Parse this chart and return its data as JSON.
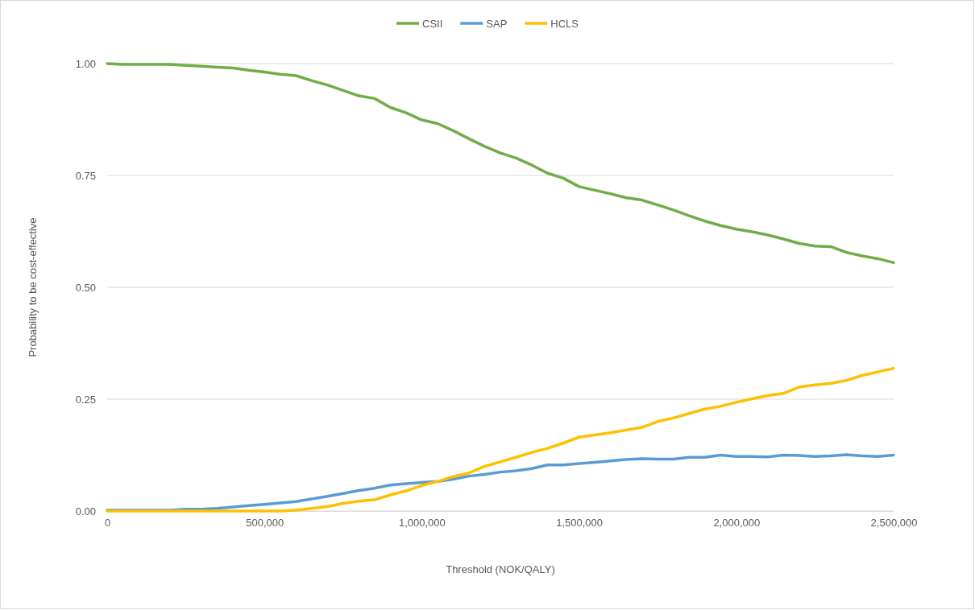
{
  "chart_data": {
    "type": "line",
    "xlabel": "Threshold (NOK/QALY)",
    "ylabel": "Probability to be cost-effective",
    "x": [
      0,
      50000,
      100000,
      150000,
      200000,
      250000,
      300000,
      350000,
      400000,
      450000,
      500000,
      550000,
      600000,
      650000,
      700000,
      750000,
      800000,
      850000,
      900000,
      950000,
      1000000,
      1050000,
      1100000,
      1150000,
      1200000,
      1250000,
      1300000,
      1350000,
      1400000,
      1450000,
      1500000,
      1550000,
      1600000,
      1650000,
      1700000,
      1750000,
      1800000,
      1850000,
      1900000,
      1950000,
      2000000,
      2050000,
      2100000,
      2150000,
      2200000,
      2250000,
      2300000,
      2350000,
      2400000,
      2450000,
      2500000
    ],
    "series": [
      {
        "name": "CSII",
        "color": "#70ad47",
        "values": [
          1.0,
          0.998,
          0.998,
          0.998,
          0.998,
          0.996,
          0.994,
          0.992,
          0.99,
          0.985,
          0.981,
          0.976,
          0.973,
          0.962,
          0.952,
          0.94,
          0.928,
          0.922,
          0.902,
          0.89,
          0.874,
          0.866,
          0.85,
          0.832,
          0.815,
          0.8,
          0.789,
          0.773,
          0.755,
          0.744,
          0.725,
          0.717,
          0.709,
          0.7,
          0.695,
          0.684,
          0.673,
          0.66,
          0.648,
          0.638,
          0.63,
          0.624,
          0.617,
          0.608,
          0.598,
          0.592,
          0.591,
          0.578,
          0.57,
          0.564,
          0.555
        ]
      },
      {
        "name": "SAP",
        "color": "#5b9bd5",
        "values": [
          0.002,
          0.002,
          0.002,
          0.002,
          0.002,
          0.004,
          0.004,
          0.006,
          0.009,
          0.012,
          0.015,
          0.018,
          0.021,
          0.027,
          0.033,
          0.039,
          0.046,
          0.051,
          0.058,
          0.061,
          0.064,
          0.066,
          0.071,
          0.078,
          0.082,
          0.087,
          0.09,
          0.095,
          0.103,
          0.103,
          0.106,
          0.109,
          0.112,
          0.115,
          0.117,
          0.116,
          0.116,
          0.12,
          0.12,
          0.125,
          0.122,
          0.122,
          0.121,
          0.125,
          0.124,
          0.122,
          0.123,
          0.126,
          0.123,
          0.122,
          0.125
        ]
      },
      {
        "name": "HCLS",
        "color": "#ffc000",
        "values": [
          0,
          0,
          0,
          0,
          0,
          0,
          0,
          0,
          0,
          0,
          0,
          0,
          0.002,
          0.006,
          0.01,
          0.017,
          0.022,
          0.025,
          0.036,
          0.045,
          0.057,
          0.066,
          0.077,
          0.085,
          0.1,
          0.11,
          0.12,
          0.131,
          0.14,
          0.152,
          0.165,
          0.17,
          0.175,
          0.181,
          0.187,
          0.2,
          0.208,
          0.218,
          0.228,
          0.234,
          0.243,
          0.251,
          0.258,
          0.263,
          0.277,
          0.282,
          0.285,
          0.292,
          0.303,
          0.311,
          0.319
        ]
      }
    ],
    "xlim": [
      0,
      2500000
    ],
    "xticks": [
      0,
      {
        "value": 500000,
        "label": "500,000"
      },
      {
        "value": 1000000,
        "label": "1,000,000"
      },
      {
        "value": 1500000,
        "label": "1,500,000"
      },
      {
        "value": 2000000,
        "label": "2,000,000"
      },
      {
        "value": 2500000,
        "label": "2,500,000"
      }
    ],
    "ylim": [
      0,
      1.0
    ],
    "yticks": [
      {
        "value": 0,
        "label": "0.00"
      },
      {
        "value": 0.25,
        "label": "0.25"
      },
      {
        "value": 0.5,
        "label": "0.50"
      },
      {
        "value": 0.75,
        "label": "0.75"
      },
      {
        "value": 1,
        "label": "1.00"
      }
    ],
    "grid": "y",
    "legend": "top",
    "marker": "none",
    "line_style": "solid"
  }
}
